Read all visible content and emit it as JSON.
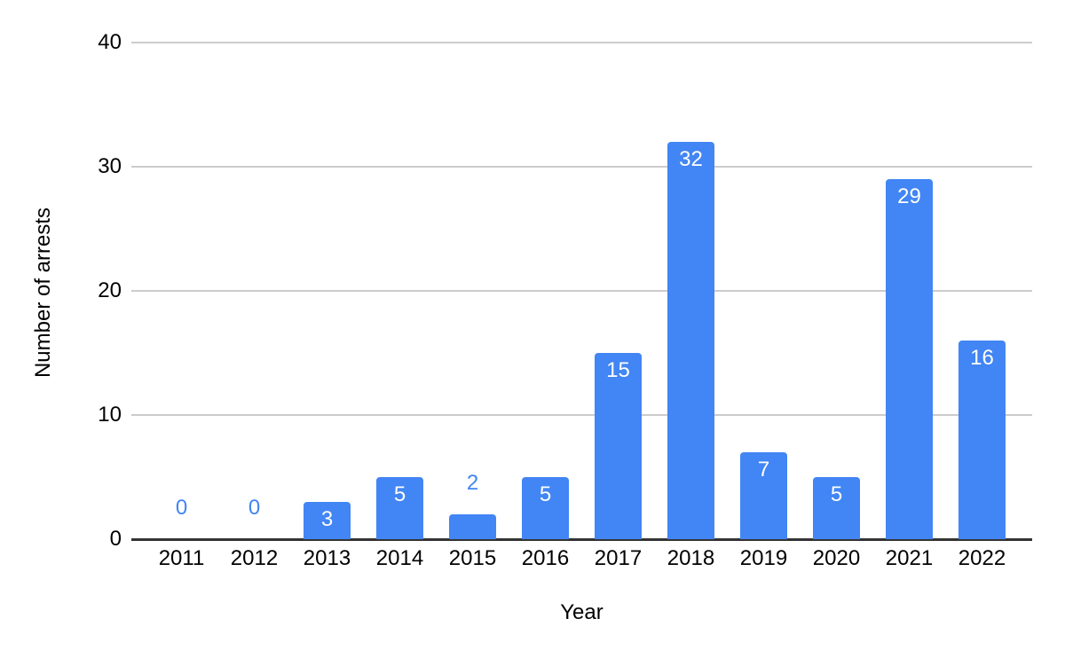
{
  "chart_data": {
    "type": "bar",
    "title": "",
    "xlabel": "Year",
    "ylabel": "Number of arrests",
    "categories": [
      "2011",
      "2012",
      "2013",
      "2014",
      "2015",
      "2016",
      "2017",
      "2018",
      "2019",
      "2020",
      "2021",
      "2022"
    ],
    "values": [
      0,
      0,
      3,
      5,
      2,
      5,
      15,
      32,
      7,
      5,
      29,
      16
    ],
    "ylim": [
      0,
      40
    ],
    "yticks": [
      0,
      10,
      20,
      30,
      40
    ],
    "grid": true,
    "legend": "none",
    "data_labels": "shown (inside bar when it fits, otherwise above bar)",
    "colors": {
      "bar": "#4285F4",
      "label_inside": "#FFFFFF",
      "label_outside": "#4285F4",
      "gridline": "#CCCCCC",
      "axis_line": "#333333",
      "tick_text": "#000000",
      "axis_title_text": "#000000",
      "background": "#FFFFFF"
    }
  }
}
